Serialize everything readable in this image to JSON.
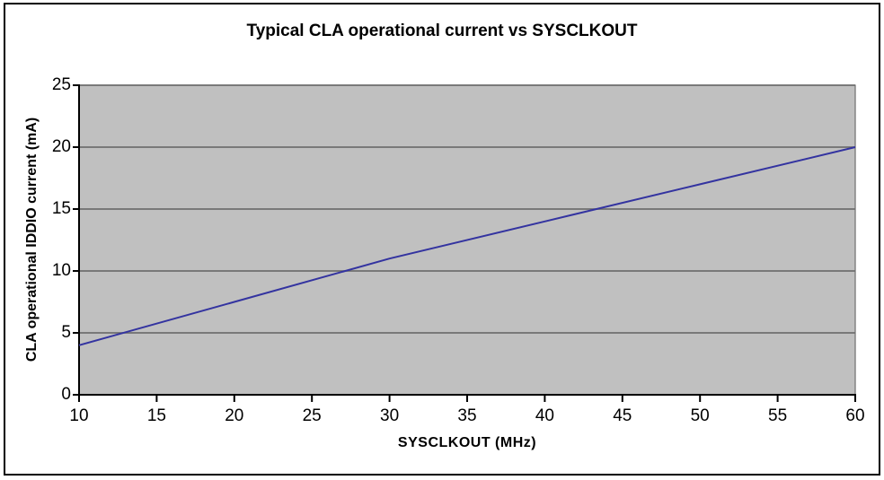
{
  "chart_data": {
    "type": "line",
    "title": "Typical CLA operational current vs SYSCLKOUT",
    "xlabel": "SYSCLKOUT (MHz)",
    "ylabel": "CLA operational IDDIO current (mA)",
    "x": [
      10,
      20,
      30,
      40,
      50,
      60
    ],
    "y": [
      4,
      7.5,
      11,
      14,
      17,
      20
    ],
    "xlim": [
      10,
      60
    ],
    "ylim": [
      0,
      25
    ],
    "xticks": [
      10,
      15,
      20,
      25,
      30,
      35,
      40,
      45,
      50,
      55,
      60
    ],
    "yticks": [
      0,
      5,
      10,
      15,
      20,
      25
    ],
    "grid": true,
    "legend": false,
    "colors": {
      "line": "#3333a0",
      "plot_background": "#c0c0c0",
      "gridline": "#6f6f6f",
      "axis": "#000000",
      "frame": "#000000",
      "background": "#ffffff",
      "text": "#000000"
    }
  }
}
